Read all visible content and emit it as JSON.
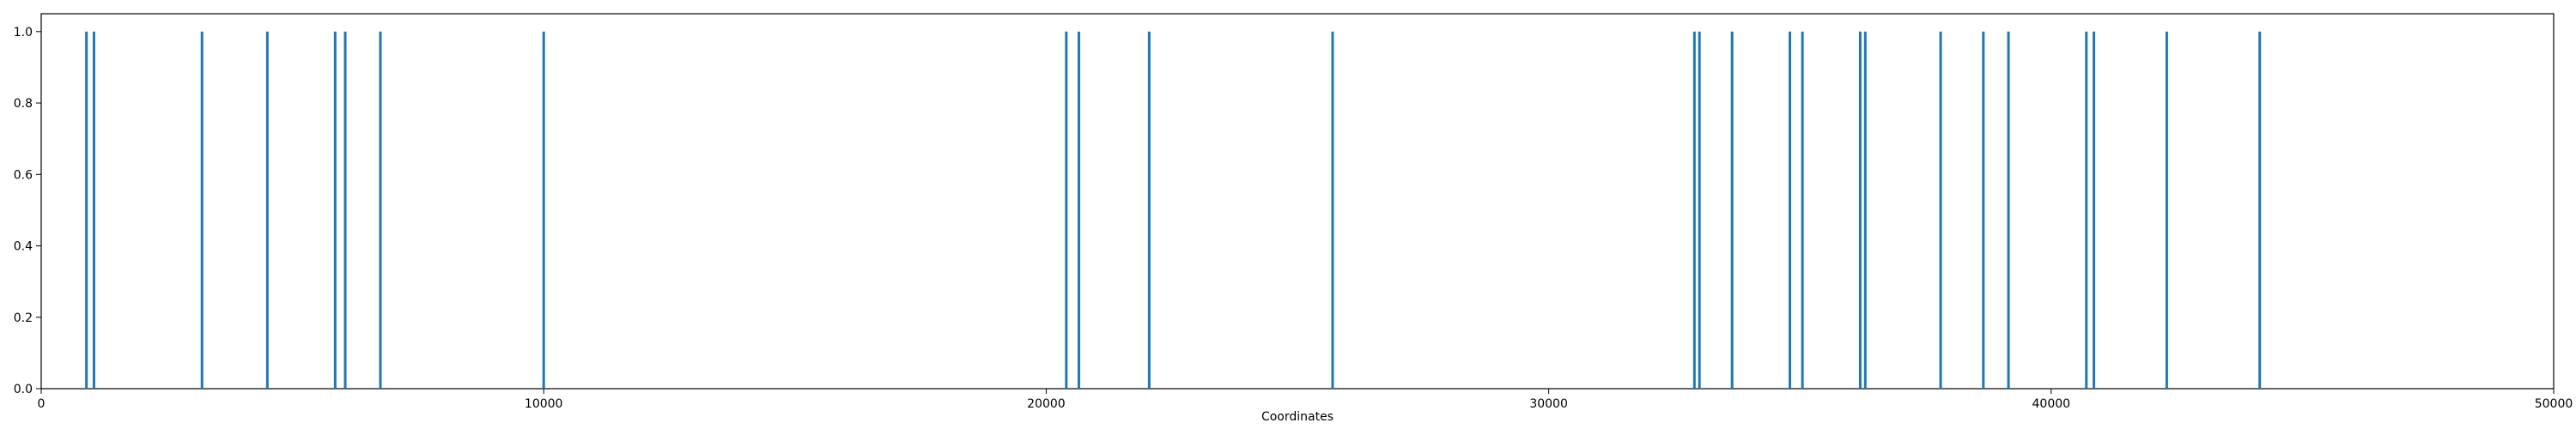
{
  "chart_data": {
    "type": "bar",
    "xlabel": "Coordinates",
    "ylabel": "",
    "title": "",
    "xlim": [
      0,
      50000
    ],
    "ylim": [
      0,
      1.05
    ],
    "x_ticks": [
      0,
      10000,
      20000,
      30000,
      40000,
      50000
    ],
    "y_ticks": [
      0.0,
      0.2,
      0.4,
      0.6,
      0.8,
      1.0
    ],
    "x_tick_labels": [
      "0",
      "10000",
      "20000",
      "30000",
      "40000",
      "50000"
    ],
    "y_tick_labels": [
      "0.0",
      "0.2",
      "0.4",
      "0.6",
      "0.8",
      "1.0"
    ],
    "grid": false,
    "color": "#1f77b4",
    "series": [
      {
        "x": [
          900,
          1050,
          3200,
          4500,
          5850,
          6050,
          6750,
          10000,
          20400,
          20650,
          22050,
          25700,
          32900,
          33000,
          33650,
          34800,
          35050,
          36200,
          36300,
          37800,
          38650,
          39150,
          40700,
          40850,
          42300,
          44150
        ],
        "values": [
          1,
          1,
          1,
          1,
          1,
          1,
          1,
          1,
          1,
          1,
          1,
          1,
          1,
          1,
          1,
          1,
          1,
          1,
          1,
          1,
          1,
          1,
          1,
          1,
          1,
          1
        ]
      }
    ]
  }
}
